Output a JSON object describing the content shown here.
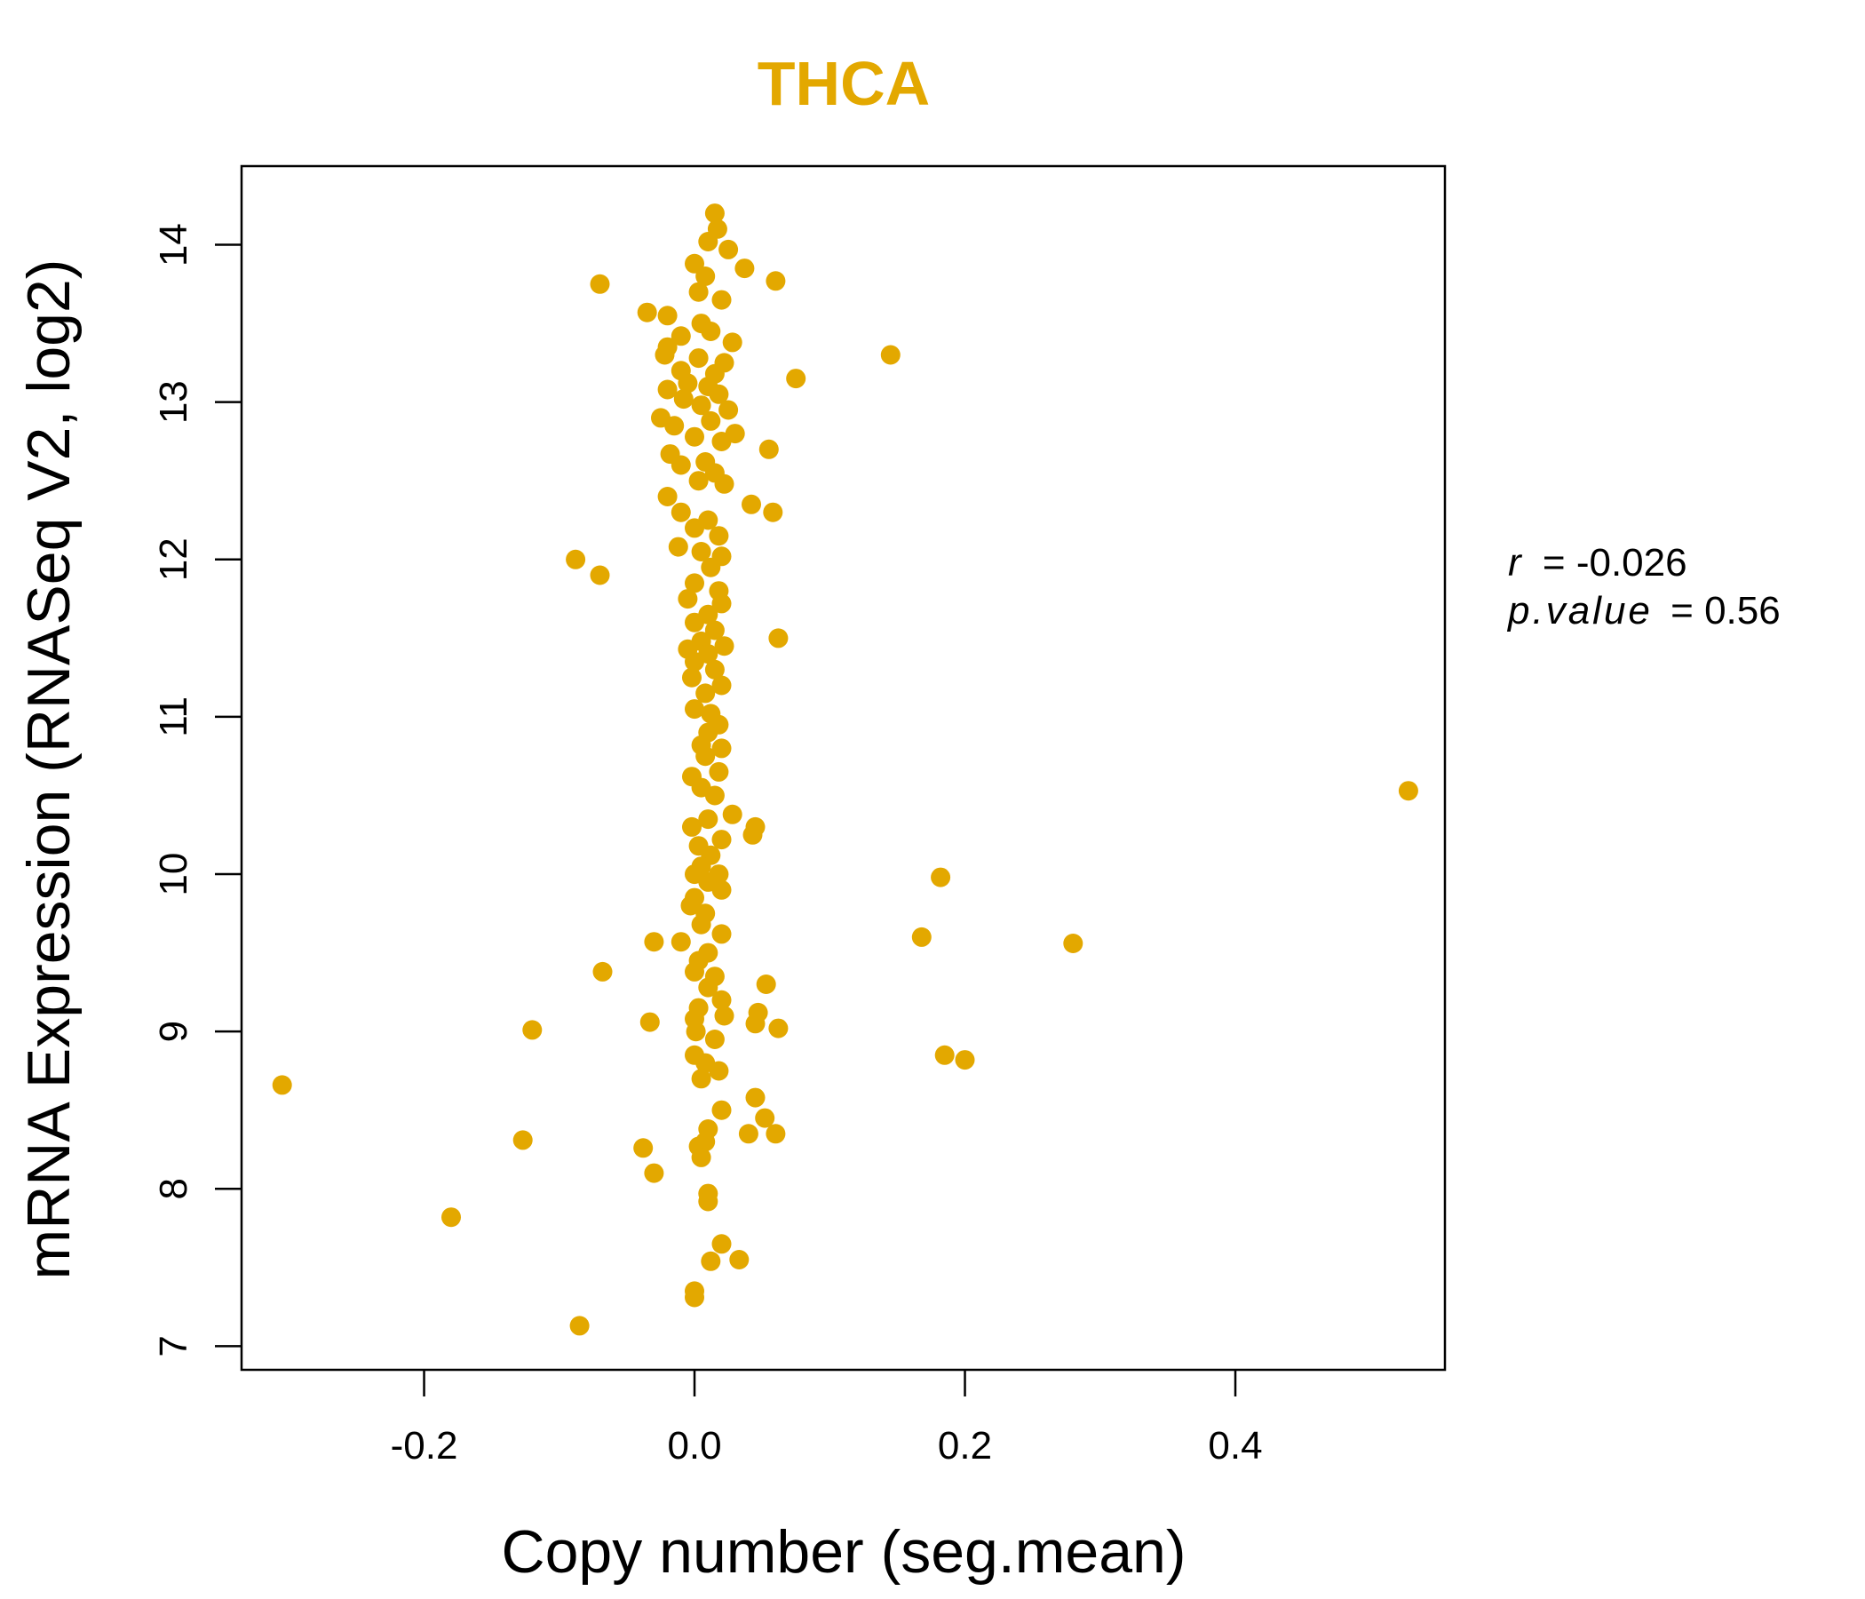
{
  "chart_data": {
    "type": "scatter",
    "title": "THCA",
    "xlabel": "Copy number (seg.mean)",
    "ylabel": "mRNA Expression (RNASeq V2, log2)",
    "xlim": [
      -0.335,
      0.555
    ],
    "ylim": [
      6.85,
      14.5
    ],
    "xticks": [
      -0.2,
      0.0,
      0.2,
      0.4
    ],
    "xtick_labels": [
      "-0.2",
      "0.0",
      "0.2",
      "0.4"
    ],
    "yticks": [
      7,
      8,
      9,
      10,
      11,
      12,
      13,
      14
    ],
    "ytick_labels": [
      "7",
      "8",
      "9",
      "10",
      "11",
      "12",
      "13",
      "14"
    ],
    "grid": false,
    "point_color": "#E3A800",
    "stats": {
      "r_label": "r",
      "r_value": "-0.026",
      "p_label": "p.value",
      "p_value": "0.56"
    },
    "points": [
      [
        0.015,
        14.2
      ],
      [
        0.017,
        14.1
      ],
      [
        0.01,
        14.02
      ],
      [
        0.025,
        13.97
      ],
      [
        0.0,
        13.88
      ],
      [
        0.037,
        13.85
      ],
      [
        0.06,
        13.77
      ],
      [
        0.008,
        13.8
      ],
      [
        -0.07,
        13.75
      ],
      [
        0.003,
        13.7
      ],
      [
        0.02,
        13.65
      ],
      [
        -0.035,
        13.57
      ],
      [
        -0.02,
        13.55
      ],
      [
        0.005,
        13.5
      ],
      [
        0.012,
        13.45
      ],
      [
        -0.01,
        13.42
      ],
      [
        0.028,
        13.38
      ],
      [
        -0.02,
        13.35
      ],
      [
        -0.022,
        13.3
      ],
      [
        0.145,
        13.3
      ],
      [
        0.003,
        13.28
      ],
      [
        0.022,
        13.25
      ],
      [
        -0.01,
        13.2
      ],
      [
        0.015,
        13.18
      ],
      [
        0.075,
        13.15
      ],
      [
        -0.005,
        13.12
      ],
      [
        0.01,
        13.1
      ],
      [
        -0.02,
        13.08
      ],
      [
        0.018,
        13.05
      ],
      [
        -0.008,
        13.02
      ],
      [
        0.005,
        12.98
      ],
      [
        0.025,
        12.95
      ],
      [
        -0.025,
        12.9
      ],
      [
        0.012,
        12.88
      ],
      [
        -0.015,
        12.85
      ],
      [
        0.03,
        12.8
      ],
      [
        0.0,
        12.78
      ],
      [
        0.02,
        12.75
      ],
      [
        0.055,
        12.7
      ],
      [
        -0.018,
        12.67
      ],
      [
        0.008,
        12.62
      ],
      [
        -0.01,
        12.6
      ],
      [
        0.015,
        12.55
      ],
      [
        0.003,
        12.5
      ],
      [
        0.022,
        12.48
      ],
      [
        -0.02,
        12.4
      ],
      [
        0.042,
        12.35
      ],
      [
        0.058,
        12.3
      ],
      [
        -0.01,
        12.3
      ],
      [
        0.01,
        12.25
      ],
      [
        0.0,
        12.2
      ],
      [
        0.018,
        12.15
      ],
      [
        -0.012,
        12.08
      ],
      [
        0.005,
        12.05
      ],
      [
        0.02,
        12.02
      ],
      [
        -0.088,
        12.0
      ],
      [
        0.012,
        11.95
      ],
      [
        -0.07,
        11.9
      ],
      [
        0.0,
        11.85
      ],
      [
        0.018,
        11.8
      ],
      [
        -0.005,
        11.75
      ],
      [
        0.02,
        11.72
      ],
      [
        0.01,
        11.65
      ],
      [
        0.0,
        11.6
      ],
      [
        0.015,
        11.55
      ],
      [
        0.062,
        11.5
      ],
      [
        0.005,
        11.48
      ],
      [
        0.022,
        11.45
      ],
      [
        -0.005,
        11.43
      ],
      [
        0.01,
        11.4
      ],
      [
        0.0,
        11.35
      ],
      [
        0.015,
        11.3
      ],
      [
        -0.002,
        11.25
      ],
      [
        0.02,
        11.2
      ],
      [
        0.008,
        11.15
      ],
      [
        0.0,
        11.05
      ],
      [
        0.012,
        11.02
      ],
      [
        0.018,
        10.95
      ],
      [
        0.01,
        10.9
      ],
      [
        0.005,
        10.82
      ],
      [
        0.02,
        10.8
      ],
      [
        0.008,
        10.75
      ],
      [
        0.018,
        10.65
      ],
      [
        -0.002,
        10.62
      ],
      [
        0.005,
        10.55
      ],
      [
        0.015,
        10.5
      ],
      [
        0.528,
        10.53
      ],
      [
        0.028,
        10.38
      ],
      [
        0.01,
        10.35
      ],
      [
        -0.002,
        10.3
      ],
      [
        0.045,
        10.3
      ],
      [
        0.043,
        10.25
      ],
      [
        0.02,
        10.22
      ],
      [
        0.003,
        10.18
      ],
      [
        0.012,
        10.12
      ],
      [
        0.005,
        10.05
      ],
      [
        0.0,
        10.0
      ],
      [
        0.018,
        10.0
      ],
      [
        0.182,
        9.98
      ],
      [
        0.01,
        9.95
      ],
      [
        0.02,
        9.9
      ],
      [
        0.0,
        9.85
      ],
      [
        -0.003,
        9.8
      ],
      [
        0.008,
        9.75
      ],
      [
        0.005,
        9.68
      ],
      [
        0.02,
        9.62
      ],
      [
        0.168,
        9.6
      ],
      [
        -0.03,
        9.57
      ],
      [
        0.28,
        9.56
      ],
      [
        -0.01,
        9.57
      ],
      [
        0.01,
        9.5
      ],
      [
        0.003,
        9.45
      ],
      [
        -0.068,
        9.38
      ],
      [
        0.0,
        9.38
      ],
      [
        0.015,
        9.35
      ],
      [
        0.053,
        9.3
      ],
      [
        0.01,
        9.28
      ],
      [
        0.02,
        9.2
      ],
      [
        0.003,
        9.15
      ],
      [
        0.047,
        9.12
      ],
      [
        0.022,
        9.1
      ],
      [
        0.0,
        9.08
      ],
      [
        -0.033,
        9.06
      ],
      [
        0.045,
        9.05
      ],
      [
        0.062,
        9.02
      ],
      [
        -0.12,
        9.01
      ],
      [
        0.001,
        9.0
      ],
      [
        0.015,
        8.95
      ],
      [
        0.185,
        8.85
      ],
      [
        0.0,
        8.85
      ],
      [
        0.2,
        8.82
      ],
      [
        0.008,
        8.8
      ],
      [
        0.018,
        8.75
      ],
      [
        0.005,
        8.7
      ],
      [
        -0.305,
        8.66
      ],
      [
        0.045,
        8.58
      ],
      [
        0.02,
        8.5
      ],
      [
        0.052,
        8.45
      ],
      [
        0.01,
        8.38
      ],
      [
        0.04,
        8.35
      ],
      [
        0.06,
        8.35
      ],
      [
        0.008,
        8.3
      ],
      [
        -0.127,
        8.31
      ],
      [
        0.003,
        8.27
      ],
      [
        -0.038,
        8.26
      ],
      [
        0.005,
        8.2
      ],
      [
        -0.03,
        8.1
      ],
      [
        0.01,
        7.97
      ],
      [
        0.01,
        7.92
      ],
      [
        -0.18,
        7.82
      ],
      [
        0.02,
        7.65
      ],
      [
        0.033,
        7.55
      ],
      [
        0.012,
        7.54
      ],
      [
        0.0,
        7.35
      ],
      [
        0.0,
        7.31
      ],
      [
        -0.085,
        7.13
      ]
    ]
  }
}
